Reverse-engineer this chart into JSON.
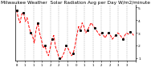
{
  "title": "Milwaukee Weather  Solar Radiation Avg per Day W/m2/minute",
  "title_fontsize": 4.2,
  "line_color": "#ff0000",
  "marker_color": "#000000",
  "bg_color": "#ffffff",
  "plot_bg": "#ffffff",
  "y_values": [
    4.8,
    4.2,
    3.8,
    4.5,
    4.6,
    3.9,
    4.2,
    3.5,
    3.0,
    2.8,
    2.2,
    3.2,
    3.8,
    3.0,
    2.5,
    1.8,
    2.0,
    1.5,
    1.2,
    1.8,
    2.5,
    2.8,
    1.9,
    1.5,
    1.0,
    0.9,
    1.2,
    1.5,
    2.0,
    1.8,
    1.5,
    1.2,
    1.4,
    2.0,
    2.8,
    3.5,
    3.2,
    3.8,
    3.5,
    3.0,
    3.2,
    3.5,
    3.8,
    3.6,
    3.4,
    3.2,
    3.0,
    2.8,
    3.0,
    2.8,
    2.6,
    2.9,
    3.0,
    2.8,
    2.5,
    2.7,
    2.8,
    3.0,
    2.9,
    2.7,
    2.5,
    2.8,
    3.0,
    2.9,
    3.1,
    3.0,
    2.8
  ],
  "ylim": [
    0.8,
    5.2
  ],
  "yticks": [
    1,
    2,
    3,
    4,
    5
  ],
  "ytick_labels": [
    "1",
    "2",
    "3",
    "4",
    "5"
  ],
  "grid_color": "#888888",
  "grid_style": "--",
  "num_vgrid": 14,
  "xlabel_fontsize": 2.8,
  "ylabel_fontsize": 3.2,
  "left_spine": true,
  "right_spine": true,
  "top_spine": false,
  "bottom_spine": true
}
